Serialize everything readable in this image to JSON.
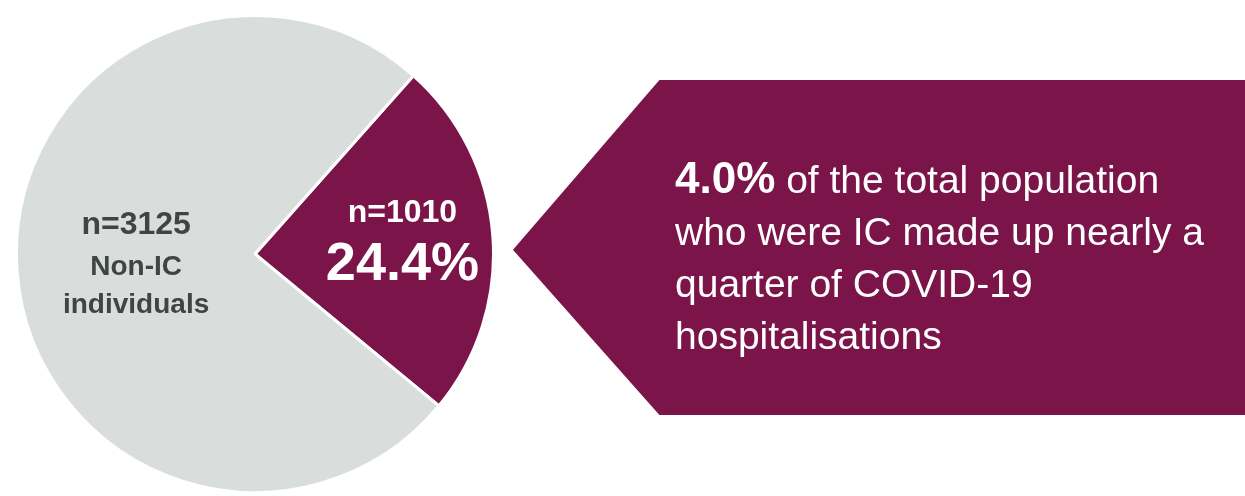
{
  "chart_data": {
    "type": "pie",
    "categories": [
      null,
      "Non-IC individuals"
    ],
    "values": [
      1010,
      3125
    ],
    "colors": [
      "#7b1449",
      "#d9dedd"
    ],
    "value_labels": [
      "n=1010\n24.4%",
      "n=3125"
    ],
    "legend": false,
    "annotations": [
      "4.0% of the total population who were IC made up nearly a quarter of COVID-19 hospitalisations"
    ]
  }
}
